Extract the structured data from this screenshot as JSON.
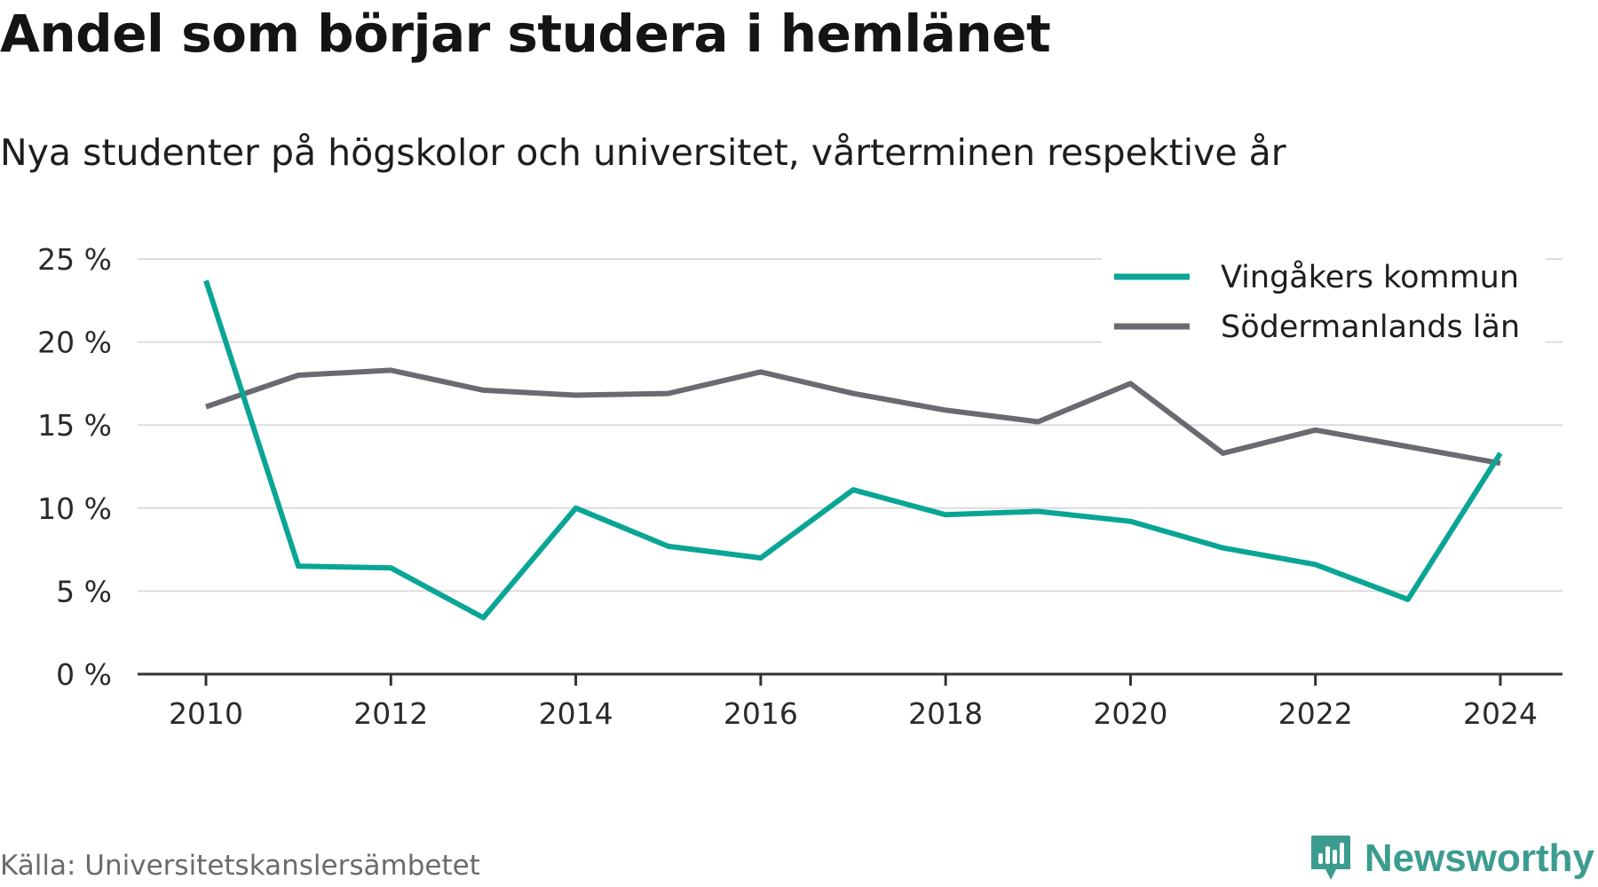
{
  "chart_data": {
    "type": "line",
    "title": "Andel som börjar studera i hemlänet",
    "subtitle": "Nya studenter på högskolor och universitet, vårterminen respektive år",
    "x": [
      2010,
      2011,
      2012,
      2013,
      2014,
      2015,
      2016,
      2017,
      2018,
      2019,
      2020,
      2021,
      2022,
      2023,
      2024
    ],
    "x_ticks": [
      "2010",
      "2012",
      "2014",
      "2016",
      "2018",
      "2020",
      "2022",
      "2024"
    ],
    "y_ticks": [
      "0 %",
      "5 %",
      "10 %",
      "15 %",
      "20 %",
      "25 %"
    ],
    "ylim": [
      0,
      25
    ],
    "xlabel": "",
    "ylabel": "",
    "grid": true,
    "legend_position": "top-right",
    "series": [
      {
        "name": "Vingåkers kommun",
        "color": "#0aa595",
        "values": [
          23.7,
          6.5,
          6.4,
          3.4,
          10.0,
          7.7,
          7.0,
          11.1,
          9.6,
          9.8,
          9.2,
          7.6,
          6.6,
          4.5,
          13.3
        ]
      },
      {
        "name": "Södermanlands län",
        "color": "#6b6a70",
        "values": [
          16.1,
          18.0,
          18.3,
          17.1,
          16.8,
          16.9,
          18.2,
          16.9,
          15.9,
          15.2,
          17.5,
          13.3,
          14.7,
          13.7,
          12.7
        ]
      }
    ],
    "source": "Källa: Universitetskanslersämbetet"
  },
  "brand": {
    "name": "Newsworthy",
    "icon": "newsworthy-logo-icon",
    "color": "#3b9c8f"
  },
  "colors": {
    "grid": "#dcdcdc",
    "axis": "#333333",
    "text": "#1a1a1a"
  }
}
